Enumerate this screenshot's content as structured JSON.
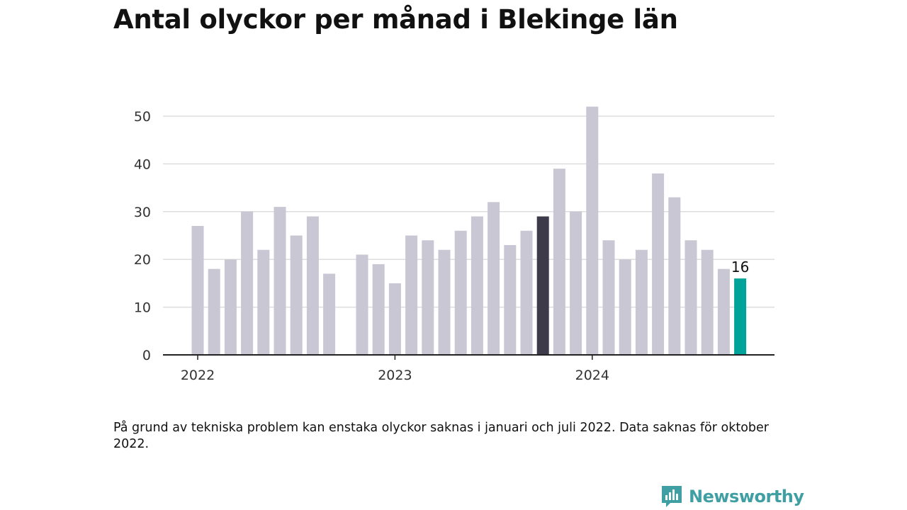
{
  "title": "Antal olyckor per månad i Blekinge län",
  "note": "På grund av tekniska problem kan enstaka olyckor saknas i januari och juli 2022. Data saknas för oktober 2022.",
  "brand": {
    "name": "Newsworthy",
    "icon": "newsworthy-logo-icon",
    "color": "#3f9fa2"
  },
  "chart_data": {
    "type": "bar",
    "title": "Antal olyckor per månad i Blekinge län",
    "xlabel": "",
    "ylabel": "",
    "ylim": [
      0,
      52
    ],
    "yticks": [
      0,
      10,
      20,
      30,
      40,
      50
    ],
    "grid": true,
    "categories": [
      "2022-01",
      "2022-02",
      "2022-03",
      "2022-04",
      "2022-05",
      "2022-06",
      "2022-07",
      "2022-08",
      "2022-09",
      "2022-10",
      "2022-11",
      "2022-12",
      "2023-01",
      "2023-02",
      "2023-03",
      "2023-04",
      "2023-05",
      "2023-06",
      "2023-07",
      "2023-08",
      "2023-09",
      "2023-10",
      "2023-11",
      "2023-12",
      "2024-01",
      "2024-02",
      "2024-03",
      "2024-04",
      "2024-05",
      "2024-06",
      "2024-07",
      "2024-08",
      "2024-09",
      "2024-10"
    ],
    "values": [
      27,
      18,
      20,
      30,
      22,
      31,
      25,
      29,
      17,
      null,
      21,
      19,
      15,
      25,
      24,
      22,
      26,
      29,
      32,
      23,
      26,
      29,
      39,
      30,
      52,
      24,
      20,
      22,
      38,
      33,
      24,
      22,
      18,
      16
    ],
    "x_tick_labels": [
      {
        "label": "2022",
        "category": "2022-01"
      },
      {
        "label": "2023",
        "category": "2023-01"
      },
      {
        "label": "2024",
        "category": "2024-01"
      }
    ],
    "highlights": [
      {
        "category": "2023-10",
        "color": "#3d3b4a"
      },
      {
        "category": "2024-10",
        "color": "#00a39a",
        "label": "16"
      }
    ],
    "colors": {
      "default": "#c8c7d3",
      "grid": "#dddddd",
      "axis": "#222222"
    }
  }
}
